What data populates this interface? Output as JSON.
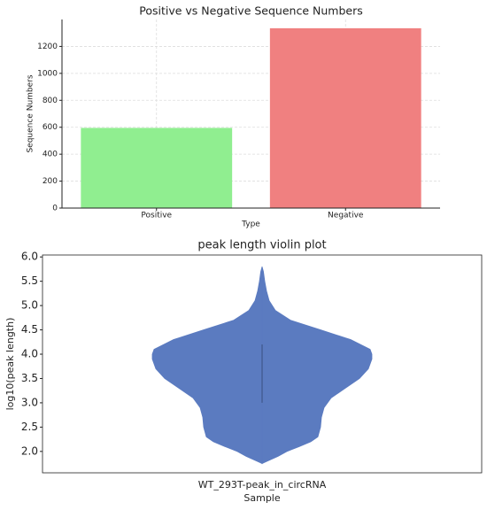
{
  "chart_data": [
    {
      "type": "bar",
      "title": "Positive vs Negative Sequence Numbers",
      "x_label": "Type",
      "y_label": "Sequence Numbers",
      "categories": [
        "Positive",
        "Negative"
      ],
      "values": [
        595,
        1335
      ],
      "colors": [
        "#90ee90",
        "#f08080"
      ],
      "ylim": [
        0,
        1400
      ],
      "yticks": [
        0,
        200,
        400,
        600,
        800,
        1000,
        1200
      ],
      "grid": true
    },
    {
      "type": "violin",
      "title": "peak length violin plot",
      "x_label": "Sample",
      "y_label": "log10(peak length)",
      "categories": [
        "WT_293T-peak_in_circRNA"
      ],
      "color": "#5b7bc0",
      "y": [
        1.75,
        1.8,
        1.9,
        2.0,
        2.1,
        2.2,
        2.3,
        2.5,
        2.7,
        2.9,
        3.1,
        3.3,
        3.5,
        3.7,
        3.9,
        4.0,
        4.1,
        4.3,
        4.5,
        4.7,
        4.9,
        5.1,
        5.3,
        5.5,
        5.7,
        5.8
      ],
      "density": [
        0,
        6,
        18,
        28,
        42,
        55,
        63,
        66,
        67,
        70,
        78,
        94,
        110,
        120,
        124,
        124,
        122,
        100,
        66,
        32,
        15,
        8,
        5,
        3,
        1.5,
        0
      ],
      "inner_range": [
        3.0,
        4.2
      ],
      "ylim": [
        1.56,
        6.04
      ],
      "yticks": [
        {
          "value": 2,
          "label": "2.0"
        },
        2.5,
        {
          "value": 3,
          "label": "3.0"
        },
        3.5,
        {
          "value": 4,
          "label": "4.0"
        },
        4.5,
        {
          "value": 5,
          "label": "5.0"
        },
        5.5,
        {
          "value": 6,
          "label": "6.0"
        }
      ],
      "grid": false
    }
  ]
}
